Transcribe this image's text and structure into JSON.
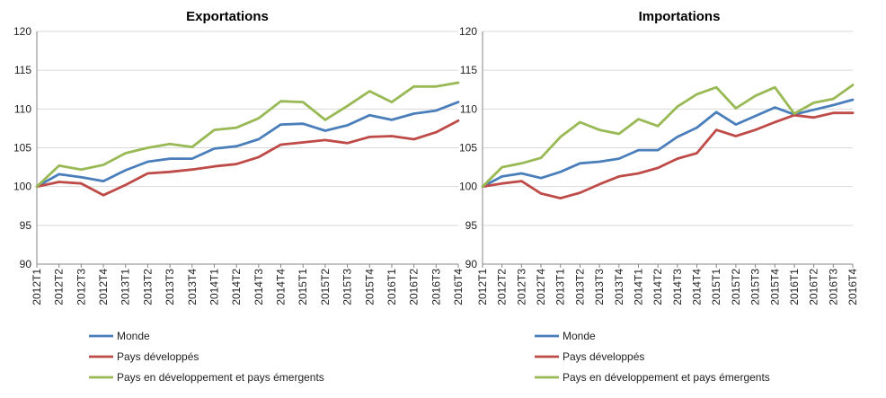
{
  "chart_data": [
    {
      "type": "line",
      "title": "Exportations",
      "xlabel": "",
      "ylabel": "",
      "ylim": [
        90,
        120
      ],
      "yticks": [
        90,
        95,
        100,
        105,
        110,
        115,
        120
      ],
      "grid": true,
      "legend_position": "bottom",
      "categories": [
        "2012T1",
        "2012T2",
        "2012T3",
        "2012T4",
        "2013T1",
        "2013T2",
        "2013T3",
        "2013T4",
        "2014T1",
        "2014T2",
        "2014T3",
        "2014T4",
        "2015T1",
        "2015T2",
        "2015T3",
        "2015T4",
        "2016T1",
        "2016T2",
        "2016T3",
        "2016T4"
      ],
      "series": [
        {
          "name": "Monde",
          "color": "#4a7ebb",
          "values": [
            100,
            101.6,
            101.2,
            100.7,
            102.1,
            103.2,
            103.6,
            103.6,
            104.9,
            105.2,
            106.1,
            108.0,
            108.1,
            107.2,
            107.9,
            109.2,
            108.6,
            109.4,
            109.8,
            110.9
          ]
        },
        {
          "name": "Pays développés",
          "color": "#be4b48",
          "values": [
            100,
            100.6,
            100.4,
            98.9,
            100.2,
            101.7,
            101.9,
            102.2,
            102.6,
            102.9,
            103.8,
            105.4,
            105.7,
            106.0,
            105.6,
            106.4,
            106.5,
            106.1,
            107.0,
            108.5
          ]
        },
        {
          "name": "Pays en développement et pays émergents",
          "color": "#98b954",
          "values": [
            100,
            102.7,
            102.2,
            102.8,
            104.3,
            105.0,
            105.5,
            105.1,
            107.3,
            107.6,
            108.8,
            111.0,
            110.9,
            108.6,
            110.4,
            112.3,
            110.9,
            112.9,
            112.9,
            113.4
          ]
        }
      ]
    },
    {
      "type": "line",
      "title": "Importations",
      "xlabel": "",
      "ylabel": "",
      "ylim": [
        90,
        120
      ],
      "yticks": [
        90,
        95,
        100,
        105,
        110,
        115,
        120
      ],
      "grid": true,
      "legend_position": "bottom",
      "categories": [
        "2012T1",
        "2012T2",
        "2012T3",
        "2012T4",
        "2013T1",
        "2013T2",
        "2013T3",
        "2013T4",
        "2014T1",
        "2014T2",
        "2014T3",
        "2014T4",
        "2015T1",
        "2015T2",
        "2015T3",
        "2015T4",
        "2016T1",
        "2016T2",
        "2016T3",
        "2016T4"
      ],
      "series": [
        {
          "name": "Monde",
          "color": "#4a7ebb",
          "values": [
            100,
            101.3,
            101.7,
            101.1,
            101.9,
            103.0,
            103.2,
            103.6,
            104.7,
            104.7,
            106.4,
            107.6,
            109.6,
            108.0,
            109.1,
            110.2,
            109.3,
            109.9,
            110.5,
            111.2
          ]
        },
        {
          "name": "Pays développés",
          "color": "#be4b48",
          "values": [
            100,
            100.4,
            100.7,
            99.1,
            98.5,
            99.2,
            100.3,
            101.3,
            101.7,
            102.4,
            103.6,
            104.3,
            107.3,
            106.5,
            107.3,
            108.3,
            109.2,
            108.9,
            109.5,
            109.5
          ]
        },
        {
          "name": "Pays en développement et pays émergents",
          "color": "#98b954",
          "values": [
            100,
            102.5,
            103.0,
            103.7,
            106.4,
            108.3,
            107.3,
            106.8,
            108.7,
            107.8,
            110.3,
            111.9,
            112.8,
            110.1,
            111.7,
            112.8,
            109.4,
            110.8,
            111.3,
            113.1
          ]
        }
      ]
    }
  ]
}
